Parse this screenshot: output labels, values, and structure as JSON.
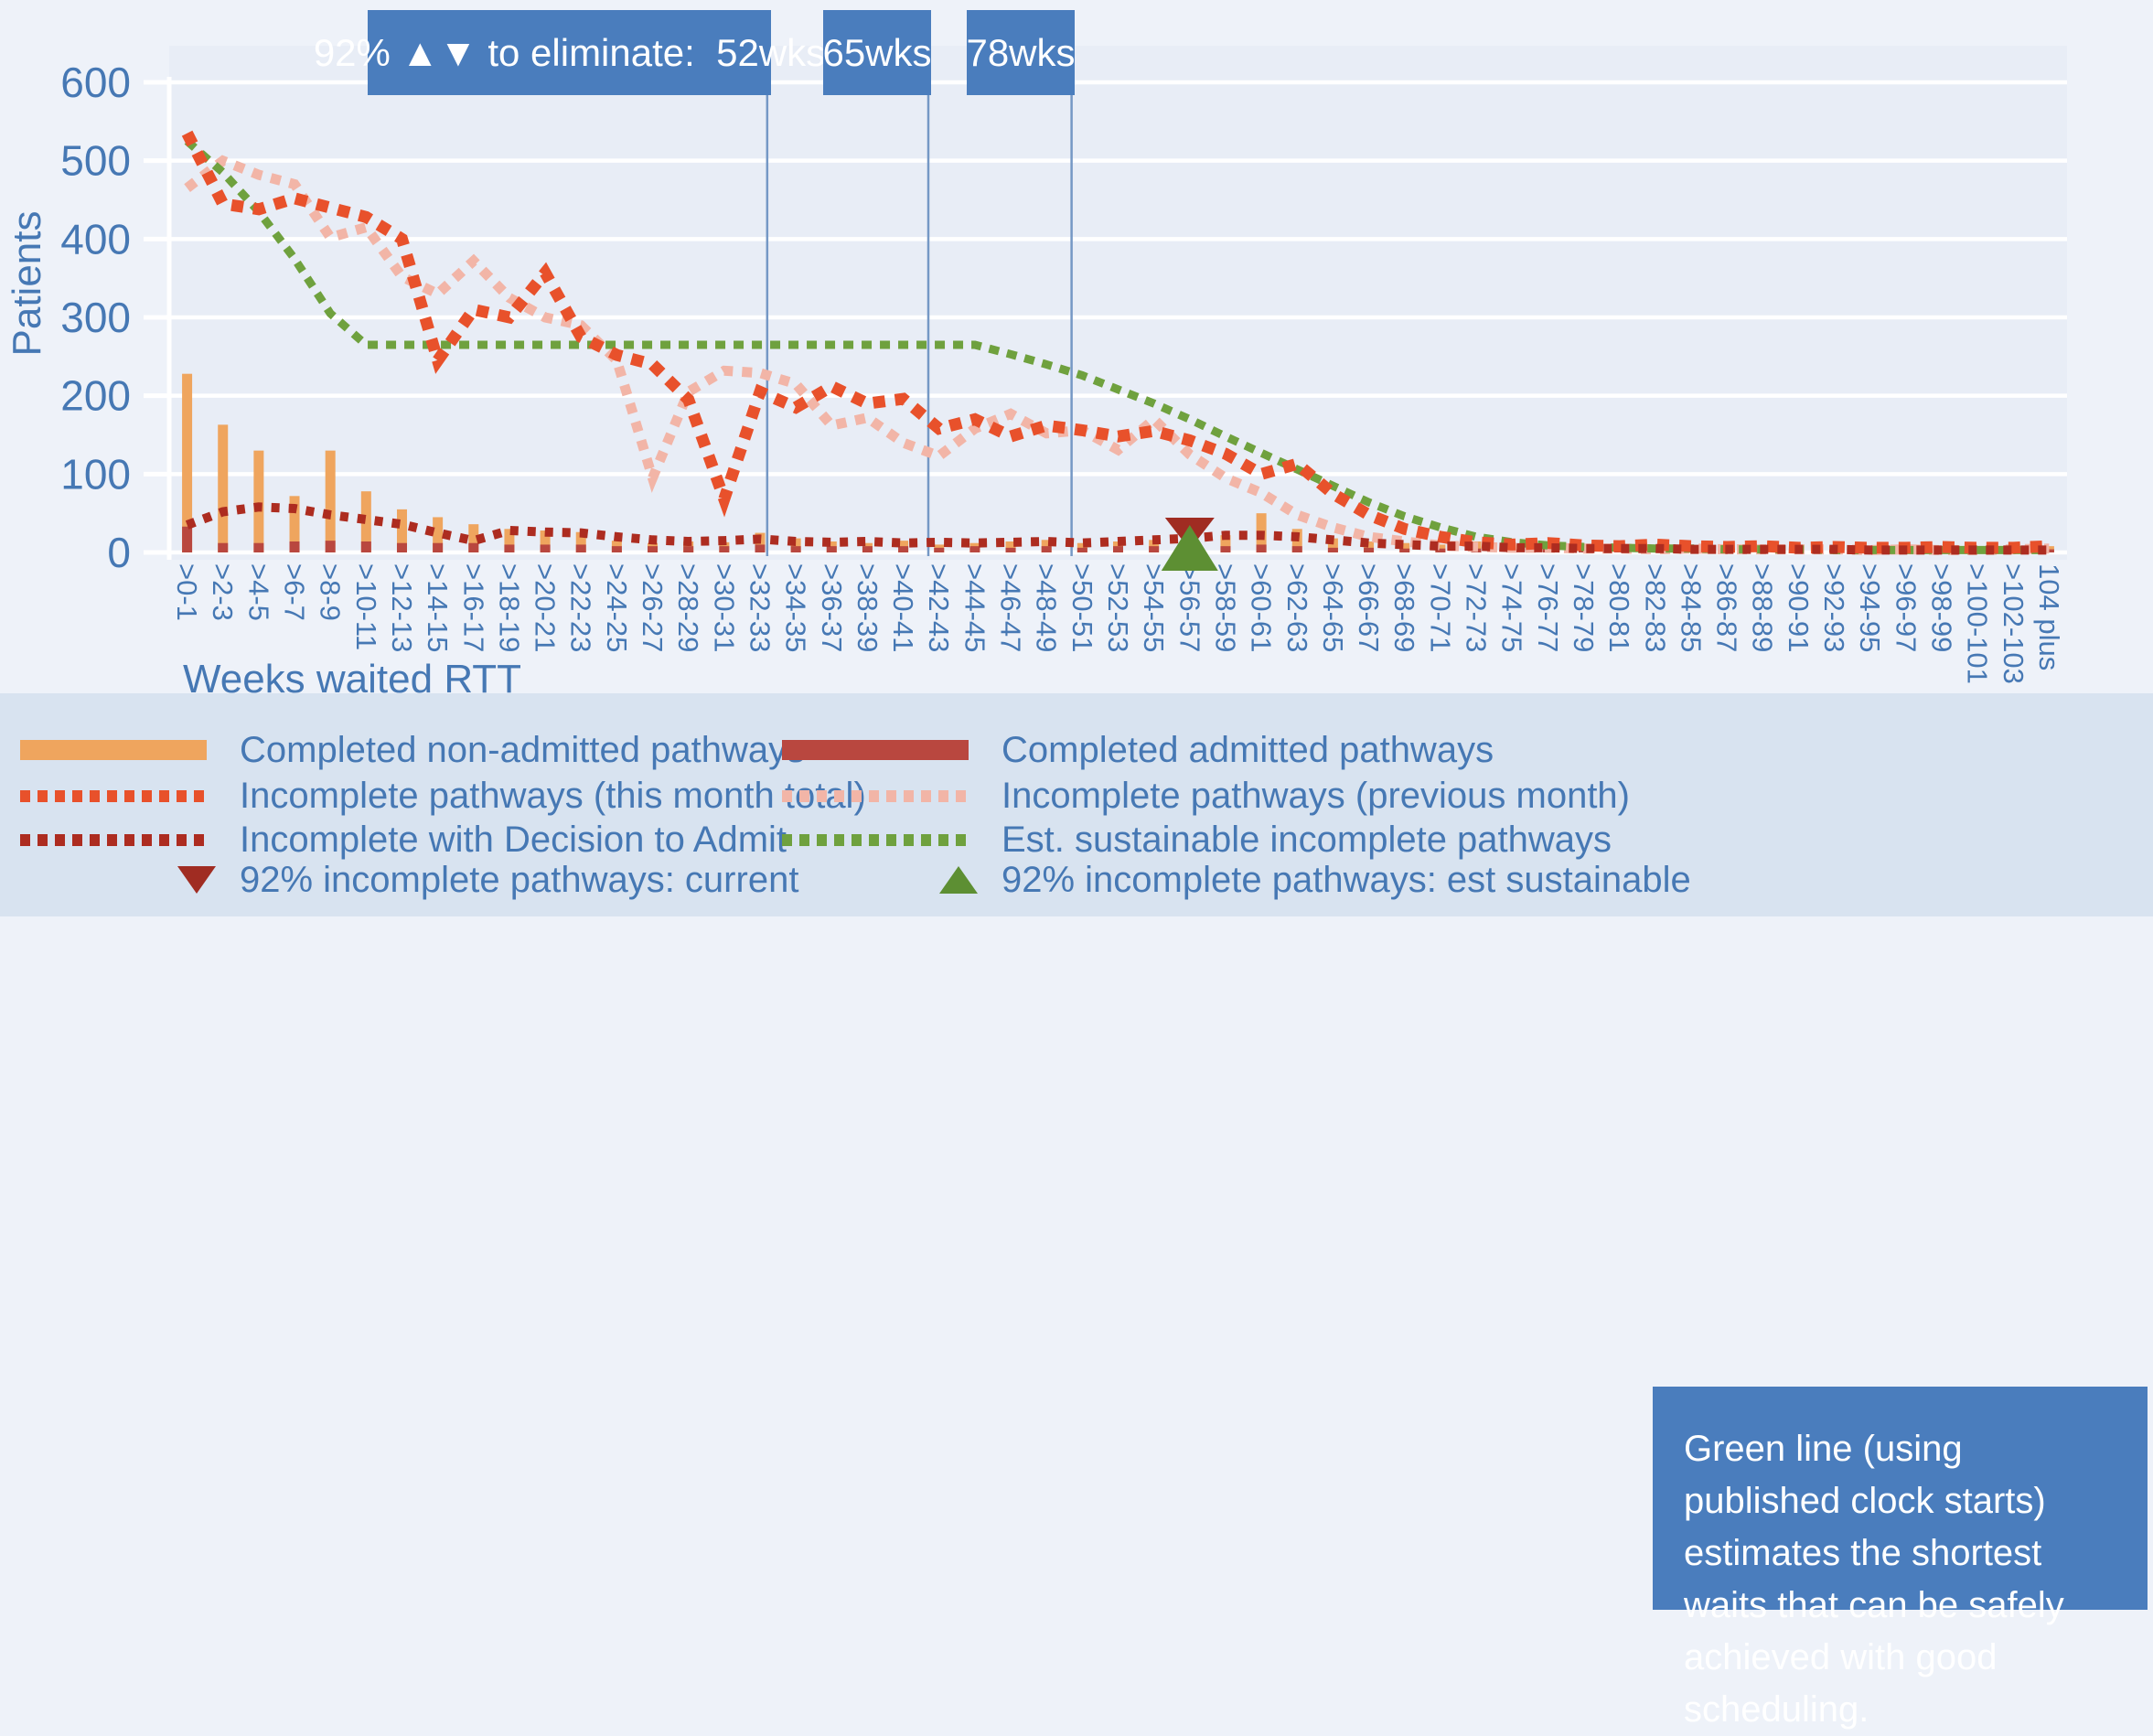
{
  "accent_colors": {
    "background": "#eef2f9",
    "plot_background": "#e8edf6",
    "legend_band": "#d8e3f0",
    "box_blue": "#4a7dbd",
    "text_blue": "#4678b4",
    "gridline": "#ffffff",
    "reference_line": "#7598c5"
  },
  "threshold_boxes": [
    {
      "label": "92% ▲▼ to eliminate:  52wks",
      "line_x_category": 16.2
    },
    {
      "label": "65wks",
      "line_x_category": 20.7
    },
    {
      "label": "78wks",
      "line_x_category": 24.7
    }
  ],
  "axis": {
    "y_title": "Patients",
    "x_title": "Weeks waited RTT"
  },
  "legend": {
    "col1": [
      {
        "label": "Completed non-admitted pathways",
        "swatch": "solid",
        "color": "#efa55e"
      },
      {
        "label": "Incomplete pathways (this month total)",
        "swatch": "dotted",
        "color": "#e8512b"
      },
      {
        "label": "Incomplete with Decision to Admit",
        "swatch": "dotted",
        "color": "#ad2c20"
      },
      {
        "label": "92% incomplete pathways: current",
        "swatch": "triangle-down",
        "color": "#a02c22"
      }
    ],
    "col2": [
      {
        "label": "Completed admitted pathways",
        "swatch": "solid",
        "color": "#b9473f"
      },
      {
        "label": "Incomplete pathways (previous month)",
        "swatch": "dotted",
        "color": "#f2b5a7"
      },
      {
        "label": "Est. sustainable incomplete pathways",
        "swatch": "dotted",
        "color": "#6fa13e"
      },
      {
        "label": "92% incomplete pathways: est sustainable",
        "swatch": "triangle-up",
        "color": "#5d8f33"
      }
    ]
  },
  "info_box": {
    "text": "Green line (using published clock starts) estimates the shortest waits that can be safely achieved with good scheduling."
  },
  "chart_data": {
    "type": "bar",
    "title": "",
    "xlabel": "Weeks waited RTT",
    "ylabel": "Patients",
    "ylim": [
      0,
      600
    ],
    "yticks": [
      0,
      100,
      200,
      300,
      400,
      500,
      600
    ],
    "grid": true,
    "legend_position": "bottom",
    "categories": [
      ">0-1",
      ">2-3",
      ">4-5",
      ">6-7",
      ">8-9",
      ">10-11",
      ">12-13",
      ">14-15",
      ">16-17",
      ">18-19",
      ">20-21",
      ">22-23",
      ">24-25",
      ">26-27",
      ">28-29",
      ">30-31",
      ">32-33",
      ">34-35",
      ">36-37",
      ">38-39",
      ">40-41",
      ">42-43",
      ">44-45",
      ">46-47",
      ">48-49",
      ">50-51",
      ">52-53",
      ">54-55",
      ">56-57",
      ">58-59",
      ">60-61",
      ">62-63",
      ">64-65",
      ">66-67",
      ">68-69",
      ">70-71",
      ">72-73",
      ">74-75",
      ">76-77",
      ">78-79",
      ">80-81",
      ">82-83",
      ">84-85",
      ">86-87",
      ">88-89",
      ">90-91",
      ">92-93",
      ">94-95",
      ">96-97",
      ">98-99",
      ">100-101",
      ">102-103",
      "104 plus"
    ],
    "series": [
      {
        "name": "Completed non-admitted pathways",
        "type": "bar",
        "color": "#efa55e",
        "values": [
          228,
          163,
          130,
          72,
          130,
          78,
          55,
          45,
          36,
          30,
          28,
          26,
          15,
          12,
          14,
          13,
          25,
          18,
          14,
          12,
          15,
          10,
          12,
          14,
          16,
          12,
          14,
          16,
          12,
          22,
          50,
          30,
          18,
          14,
          12,
          10,
          14,
          10,
          12,
          8,
          10,
          8,
          9,
          7,
          8,
          7,
          8,
          6,
          7,
          6,
          6,
          6,
          8
        ]
      },
      {
        "name": "Completed admitted pathways",
        "type": "bar",
        "color": "#b9473f",
        "values": [
          33,
          12,
          12,
          14,
          15,
          14,
          12,
          12,
          12,
          10,
          10,
          10,
          8,
          8,
          8,
          8,
          10,
          8,
          8,
          8,
          8,
          6,
          8,
          6,
          8,
          6,
          8,
          8,
          6,
          8,
          10,
          8,
          6,
          6,
          5,
          5,
          5,
          4,
          5,
          4,
          4,
          4,
          4,
          3,
          4,
          3,
          4,
          3,
          3,
          3,
          3,
          3,
          4
        ]
      },
      {
        "name": "Incomplete pathways (previous month)",
        "type": "dotted-line",
        "color": "#f2b5a7",
        "values": [
          465,
          500,
          482,
          470,
          402,
          415,
          352,
          330,
          372,
          325,
          300,
          290,
          245,
          95,
          205,
          232,
          229,
          215,
          162,
          172,
          140,
          123,
          158,
          177,
          152,
          156,
          131,
          170,
          125,
          95,
          76,
          48,
          32,
          20,
          14,
          9,
          7,
          6,
          6,
          5,
          5,
          4,
          5,
          4,
          4,
          4,
          4,
          3,
          4,
          3,
          3,
          4,
          5
        ]
      },
      {
        "name": "Est. sustainable incomplete pathways",
        "type": "dotted-line",
        "color": "#6fa13e",
        "values": [
          525,
          485,
          435,
          375,
          305,
          265,
          265,
          265,
          265,
          265,
          265,
          265,
          265,
          265,
          265,
          265,
          265,
          265,
          265,
          265,
          265,
          265,
          265,
          253,
          240,
          226,
          208,
          190,
          170,
          148,
          127,
          106,
          85,
          64,
          46,
          32,
          20,
          13,
          9,
          7,
          6,
          5,
          5,
          4,
          4,
          4,
          3,
          3,
          3,
          3,
          3,
          3,
          3
        ]
      },
      {
        "name": "Incomplete pathways (this month total)",
        "type": "dotted-line",
        "color": "#e8512b",
        "values": [
          535,
          445,
          438,
          452,
          440,
          428,
          400,
          245,
          310,
          300,
          357,
          275,
          252,
          240,
          195,
          68,
          205,
          185,
          212,
          190,
          196,
          158,
          170,
          148,
          162,
          156,
          148,
          155,
          143,
          126,
          100,
          113,
          75,
          48,
          30,
          20,
          13,
          10,
          12,
          9,
          8,
          10,
          8,
          7,
          8,
          6,
          7,
          6,
          6,
          7,
          6,
          6,
          8
        ]
      },
      {
        "name": "Incomplete with Decision to Admit",
        "type": "dotted-line",
        "color": "#ad2c20",
        "values": [
          35,
          52,
          58,
          56,
          48,
          42,
          36,
          25,
          15,
          28,
          26,
          25,
          20,
          16,
          14,
          15,
          17,
          14,
          13,
          14,
          12,
          13,
          12,
          13,
          14,
          12,
          14,
          16,
          18,
          22,
          22,
          20,
          16,
          12,
          10,
          8,
          8,
          6,
          6,
          5,
          5,
          5,
          4,
          4,
          4,
          4,
          4,
          3,
          3,
          3,
          3,
          3,
          3
        ]
      }
    ],
    "markers": [
      {
        "name": "92% incomplete pathways: current",
        "shape": "triangle-down",
        "color": "#a02c22",
        "category": ">56-57",
        "category_index": 28,
        "value": 30
      },
      {
        "name": "92% incomplete pathways: est sustainable",
        "shape": "triangle-up",
        "color": "#5d8f33",
        "category": ">56-57",
        "category_index": 28,
        "value": 25
      }
    ]
  }
}
